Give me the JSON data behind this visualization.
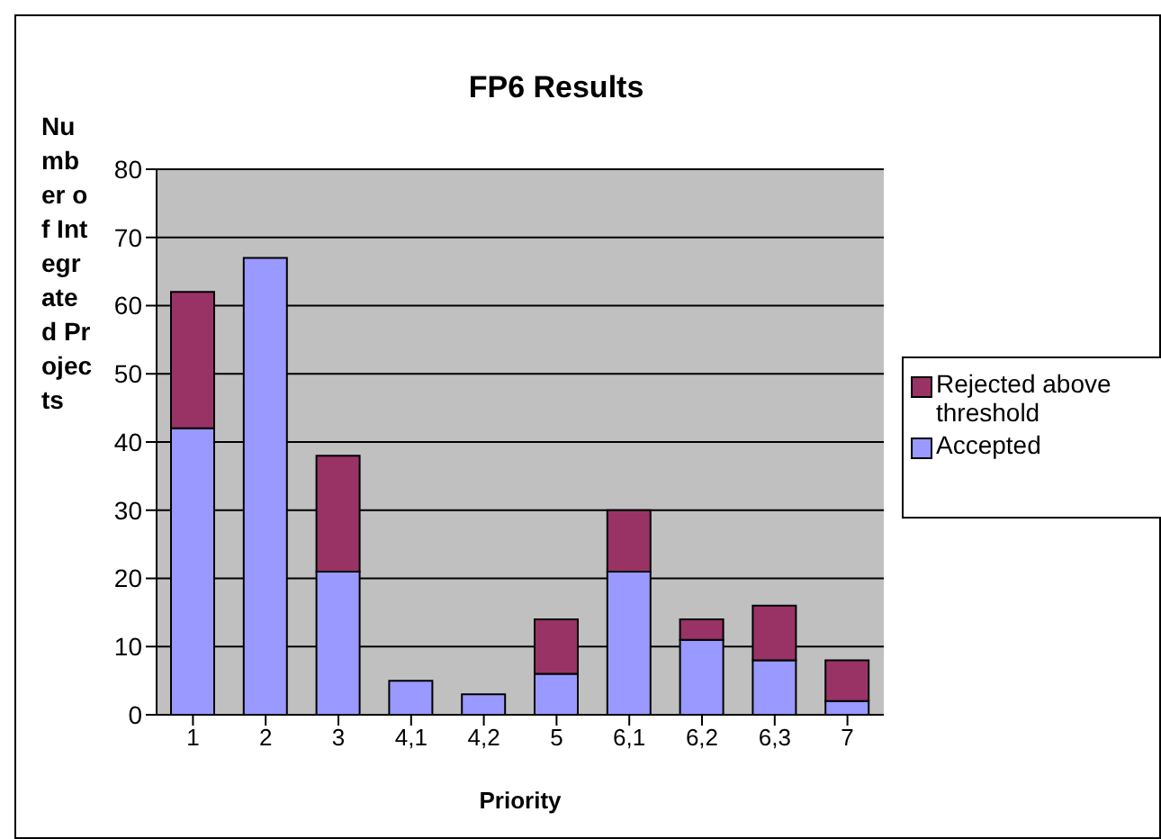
{
  "chart_data": {
    "type": "bar",
    "title": "FP6 Results",
    "xlabel": "Priority",
    "ylabel": "Number of Integrated Projects",
    "categories": [
      "1",
      "2",
      "3",
      "4,1",
      "4,2",
      "5",
      "6,1",
      "6,2",
      "6,3",
      "7"
    ],
    "series": [
      {
        "name": "Accepted",
        "color": "#9999ff",
        "values": [
          42,
          67,
          21,
          5,
          3,
          6,
          21,
          11,
          8,
          2
        ]
      },
      {
        "name": "Rejected above threshold",
        "color": "#993366",
        "values": [
          20,
          null,
          17,
          null,
          null,
          8,
          9,
          3,
          8,
          6
        ]
      }
    ],
    "stacked": true,
    "ylim": [
      0,
      80
    ],
    "yticks": [
      0,
      10,
      20,
      30,
      40,
      50,
      60,
      70,
      80
    ],
    "grid": "y",
    "legend": "right"
  }
}
